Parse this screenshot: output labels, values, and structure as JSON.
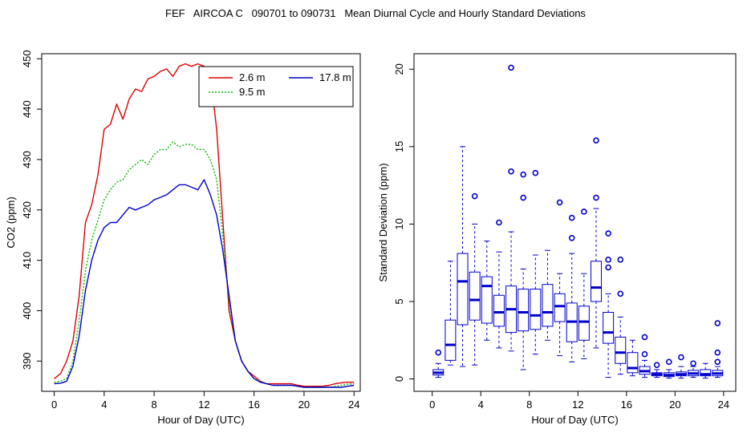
{
  "title": "FEF   AIRCOA C   090701 to 090731   Mean Diurnal Cycle and Hourly Standard Deviations",
  "chart_data": [
    {
      "type": "line",
      "xlabel": "Hour of Day (UTC)",
      "ylabel": "CO2 (ppm)",
      "xlim": [
        -1,
        24.5
      ],
      "ylim": [
        384,
        451
      ],
      "x_ticks": [
        0,
        4,
        8,
        12,
        16,
        20,
        24
      ],
      "x_tick_labels": [
        "0",
        "4",
        "8",
        "12",
        "16",
        "20",
        "24"
      ],
      "y_ticks": [
        390,
        400,
        410,
        420,
        430,
        440,
        450
      ],
      "y_tick_labels": [
        "390",
        "400",
        "410",
        "420",
        "430",
        "440",
        "450"
      ],
      "legend": {
        "placement": "top-right",
        "entries": [
          {
            "label": "2.6 m",
            "color": "#dd0000",
            "style": "solid"
          },
          {
            "label": "9.5 m",
            "color": "#00bb00",
            "style": "dotted"
          },
          {
            "label": "17.8 m",
            "color": "#0000cc",
            "style": "solid"
          }
        ]
      },
      "series": [
        {
          "name": "2.6 m",
          "color": "#dd0000",
          "x": [
            0,
            0.5,
            1,
            1.5,
            2,
            2.5,
            3,
            3.5,
            4,
            4.5,
            5,
            5.5,
            6,
            6.5,
            7,
            7.5,
            8,
            8.5,
            9,
            9.5,
            10,
            10.5,
            11,
            11.5,
            12,
            12.5,
            13,
            13.5,
            14,
            14.5,
            15,
            15.5,
            16,
            16.5,
            17,
            17.5,
            18,
            18.5,
            19,
            19.5,
            20,
            20.5,
            21,
            21.5,
            22,
            22.5,
            23,
            23.5,
            24
          ],
          "y": [
            386.5,
            387.5,
            390,
            394,
            403,
            417.5,
            421,
            427,
            436,
            437,
            441,
            438,
            442,
            444,
            443.5,
            446,
            446.5,
            447.5,
            448,
            446.5,
            448.5,
            449,
            448.5,
            449,
            448.5,
            447,
            436,
            418,
            400,
            394,
            390,
            388,
            387,
            386,
            385.5,
            385.5,
            385.5,
            385.5,
            385.5,
            385.2,
            385,
            385,
            385,
            385,
            385.2,
            385.5,
            385.7,
            385.8,
            385.8
          ]
        },
        {
          "name": "9.5 m",
          "color": "#00bb00",
          "x": [
            0,
            0.5,
            1,
            1.5,
            2,
            2.5,
            3,
            3.5,
            4,
            4.5,
            5,
            5.5,
            6,
            6.5,
            7,
            7.5,
            8,
            8.5,
            9,
            9.5,
            10,
            10.5,
            11,
            11.5,
            12,
            12.5,
            13,
            13.5,
            14,
            14.5,
            15,
            15.5,
            16,
            16.5,
            17,
            17.5,
            18,
            18.5,
            19,
            19.5,
            20,
            20.5,
            21,
            21.5,
            22,
            22.5,
            23,
            23.5,
            24
          ],
          "y": [
            385.8,
            386,
            386.5,
            390,
            398,
            408,
            414,
            418,
            422,
            424,
            425.5,
            426,
            428,
            429,
            430,
            429,
            431,
            432,
            432,
            433.5,
            432.5,
            433,
            433,
            432,
            432,
            430,
            426,
            415,
            402,
            394,
            390,
            388,
            386.5,
            386,
            385.5,
            385.2,
            385.2,
            385.2,
            385.2,
            385,
            384.8,
            384.8,
            384.8,
            384.8,
            384.8,
            385,
            385.2,
            385.4,
            385.5
          ]
        },
        {
          "name": "17.8 m",
          "color": "#0000cc",
          "x": [
            0,
            0.5,
            1,
            1.5,
            2,
            2.5,
            3,
            3.5,
            4,
            4.5,
            5,
            5.5,
            6,
            6.5,
            7,
            7.5,
            8,
            8.5,
            9,
            9.5,
            10,
            10.5,
            11,
            11.5,
            12,
            12.5,
            13,
            13.5,
            14,
            14.5,
            15,
            15.5,
            16,
            16.5,
            17,
            17.5,
            18,
            18.5,
            19,
            19.5,
            20,
            20.5,
            21,
            21.5,
            22,
            22.5,
            23,
            23.5,
            24
          ],
          "y": [
            385.5,
            385.6,
            386,
            389,
            395,
            404,
            410,
            414,
            416.5,
            417.5,
            417.5,
            419,
            420.5,
            420,
            420.5,
            421,
            422,
            422.5,
            423,
            424,
            425,
            425,
            424.5,
            424,
            426,
            423,
            419,
            412,
            403,
            394,
            390,
            388,
            386.5,
            385.8,
            385.5,
            385.2,
            385.2,
            385.2,
            385.2,
            385,
            384.8,
            384.8,
            384.8,
            384.8,
            384.8,
            384.8,
            384.8,
            385,
            385.2
          ]
        }
      ]
    },
    {
      "type": "box",
      "xlabel": "Hour of Day (UTC)",
      "ylabel": "Standard Deviation (ppm)",
      "xlim": [
        -1.5,
        25
      ],
      "ylim": [
        -0.8,
        21
      ],
      "x_ticks": [
        0,
        4,
        8,
        12,
        16,
        20,
        24
      ],
      "x_tick_labels": [
        "0",
        "4",
        "8",
        "12",
        "16",
        "20",
        "24"
      ],
      "y_ticks": [
        0,
        5,
        10,
        15,
        20
      ],
      "y_tick_labels": [
        "0",
        "5",
        "10",
        "15",
        "20"
      ],
      "color": "#0000cc",
      "boxes": [
        {
          "hour": 0.5,
          "min": 0.1,
          "q1": 0.25,
          "median": 0.4,
          "q3": 0.6,
          "max": 1.0,
          "outliers": [
            1.7
          ]
        },
        {
          "hour": 1.5,
          "min": 0.9,
          "q1": 1.2,
          "median": 2.2,
          "q3": 3.8,
          "max": 7.6,
          "outliers": []
        },
        {
          "hour": 2.5,
          "min": 0.8,
          "q1": 3.5,
          "median": 6.3,
          "q3": 8.1,
          "max": 15.0,
          "outliers": []
        },
        {
          "hour": 3.5,
          "min": 0.9,
          "q1": 3.8,
          "median": 5.1,
          "q3": 6.9,
          "max": 10.0,
          "outliers": [
            11.8
          ]
        },
        {
          "hour": 4.5,
          "min": 2.5,
          "q1": 3.6,
          "median": 6.0,
          "q3": 6.6,
          "max": 8.9,
          "outliers": []
        },
        {
          "hour": 5.5,
          "min": 2.0,
          "q1": 3.4,
          "median": 4.3,
          "q3": 5.4,
          "max": 8.2,
          "outliers": [
            10.1
          ]
        },
        {
          "hour": 6.5,
          "min": 1.8,
          "q1": 3.0,
          "median": 4.5,
          "q3": 6.0,
          "max": 9.5,
          "outliers": [
            13.4,
            20.1
          ]
        },
        {
          "hour": 7.5,
          "min": 0.6,
          "q1": 3.1,
          "median": 4.3,
          "q3": 5.8,
          "max": 7.1,
          "outliers": [
            11.7,
            13.2
          ]
        },
        {
          "hour": 8.5,
          "min": 1.6,
          "q1": 3.2,
          "median": 4.1,
          "q3": 5.8,
          "max": 8.0,
          "outliers": [
            13.3
          ]
        },
        {
          "hour": 9.5,
          "min": 2.5,
          "q1": 3.4,
          "median": 4.3,
          "q3": 6.1,
          "max": 8.3,
          "outliers": []
        },
        {
          "hour": 10.5,
          "min": 1.5,
          "q1": 3.7,
          "median": 4.7,
          "q3": 5.5,
          "max": 6.8,
          "outliers": [
            11.4
          ]
        },
        {
          "hour": 11.5,
          "min": 1.1,
          "q1": 2.4,
          "median": 3.7,
          "q3": 4.9,
          "max": 8.1,
          "outliers": [
            9.1,
            10.4
          ]
        },
        {
          "hour": 12.5,
          "min": 1.3,
          "q1": 2.5,
          "median": 3.7,
          "q3": 4.7,
          "max": 6.8,
          "outliers": [
            10.8
          ]
        },
        {
          "hour": 13.5,
          "min": 2.0,
          "q1": 5.0,
          "median": 5.9,
          "q3": 7.6,
          "max": 11.0,
          "outliers": [
            11.7,
            15.4
          ]
        },
        {
          "hour": 14.5,
          "min": 0.1,
          "q1": 2.3,
          "median": 3.0,
          "q3": 4.3,
          "max": 5.5,
          "outliers": [
            7.2,
            7.7,
            9.4
          ]
        },
        {
          "hour": 15.5,
          "min": 0.3,
          "q1": 1.0,
          "median": 1.7,
          "q3": 2.7,
          "max": 4.0,
          "outliers": [
            5.5,
            7.7
          ]
        },
        {
          "hour": 16.5,
          "min": 0.2,
          "q1": 0.4,
          "median": 0.7,
          "q3": 1.7,
          "max": 2.5,
          "outliers": []
        },
        {
          "hour": 17.5,
          "min": 0.1,
          "q1": 0.3,
          "median": 0.5,
          "q3": 0.8,
          "max": 1.2,
          "outliers": [
            1.6,
            2.7
          ]
        },
        {
          "hour": 18.5,
          "min": 0.1,
          "q1": 0.2,
          "median": 0.3,
          "q3": 0.4,
          "max": 0.6,
          "outliers": [
            0.9
          ]
        },
        {
          "hour": 19.5,
          "min": 0.05,
          "q1": 0.15,
          "median": 0.25,
          "q3": 0.4,
          "max": 0.6,
          "outliers": [
            1.1
          ]
        },
        {
          "hour": 20.5,
          "min": 0.05,
          "q1": 0.2,
          "median": 0.3,
          "q3": 0.45,
          "max": 0.8,
          "outliers": [
            1.4
          ]
        },
        {
          "hour": 21.5,
          "min": 0.1,
          "q1": 0.2,
          "median": 0.35,
          "q3": 0.55,
          "max": 0.8,
          "outliers": [
            1.0
          ]
        },
        {
          "hour": 22.5,
          "min": 0.05,
          "q1": 0.2,
          "median": 0.3,
          "q3": 0.6,
          "max": 1.0,
          "outliers": []
        },
        {
          "hour": 23.5,
          "min": 0.1,
          "q1": 0.2,
          "median": 0.35,
          "q3": 0.55,
          "max": 0.8,
          "outliers": [
            1.1,
            1.7,
            3.6
          ]
        }
      ]
    }
  ]
}
